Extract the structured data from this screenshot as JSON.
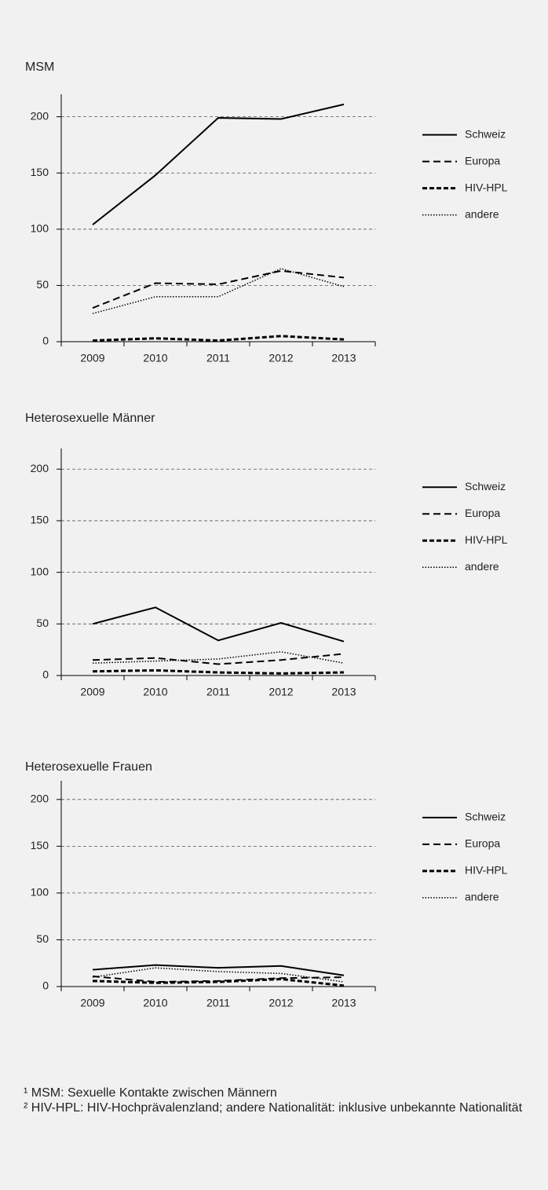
{
  "chart_data": [
    {
      "type": "line",
      "title": "MSM",
      "categories": [
        "2009",
        "2010",
        "2011",
        "2012",
        "2013"
      ],
      "series": [
        {
          "name": "Schweiz",
          "color": "#000000",
          "dash": "solid",
          "values": [
            104,
            148,
            199,
            198,
            211
          ]
        },
        {
          "name": "Europa",
          "color": "#000000",
          "dash": "longdash",
          "values": [
            30,
            52,
            51,
            63,
            57
          ]
        },
        {
          "name": "HIV-HPL",
          "color": "#000000",
          "dash": "dashed",
          "values": [
            1,
            3,
            1,
            5,
            2
          ]
        },
        {
          "name": "andere",
          "color": "#000000",
          "dash": "dotted",
          "values": [
            25,
            40,
            40,
            65,
            49
          ]
        }
      ],
      "ylim": [
        0,
        220
      ],
      "yticks": [
        0,
        50,
        100,
        150,
        200
      ],
      "grid": true,
      "legend": "right"
    },
    {
      "type": "line",
      "title": "Heterosexuelle Männer",
      "categories": [
        "2009",
        "2010",
        "2011",
        "2012",
        "2013"
      ],
      "series": [
        {
          "name": "Schweiz",
          "color": "#000000",
          "dash": "solid",
          "values": [
            50,
            66,
            34,
            51,
            33
          ]
        },
        {
          "name": "Europa",
          "color": "#000000",
          "dash": "longdash",
          "values": [
            15,
            17,
            11,
            15,
            21
          ]
        },
        {
          "name": "HIV-HPL",
          "color": "#000000",
          "dash": "dashed",
          "values": [
            4,
            5,
            3,
            2,
            3
          ]
        },
        {
          "name": "andere",
          "color": "#000000",
          "dash": "dotted",
          "values": [
            12,
            14,
            16,
            23,
            12
          ]
        }
      ],
      "ylim": [
        0,
        220
      ],
      "yticks": [
        0,
        50,
        100,
        150,
        200
      ],
      "grid": true,
      "legend": "right"
    },
    {
      "type": "line",
      "title": "Heterosexuelle Frauen",
      "categories": [
        "2009",
        "2010",
        "2011",
        "2012",
        "2013"
      ],
      "series": [
        {
          "name": "Schweiz",
          "color": "#000000",
          "dash": "solid",
          "values": [
            18,
            23,
            20,
            22,
            12
          ]
        },
        {
          "name": "Europa",
          "color": "#000000",
          "dash": "longdash",
          "values": [
            11,
            5,
            6,
            9,
            10
          ]
        },
        {
          "name": "HIV-HPL",
          "color": "#000000",
          "dash": "dashed",
          "values": [
            6,
            4,
            5,
            8,
            1
          ]
        },
        {
          "name": "andere",
          "color": "#000000",
          "dash": "dotted",
          "values": [
            10,
            20,
            16,
            14,
            5
          ]
        }
      ],
      "ylim": [
        0,
        220
      ],
      "yticks": [
        0,
        50,
        100,
        150,
        200
      ],
      "grid": true,
      "legend": "right"
    }
  ],
  "footnotes": [
    "¹ MSM: Sexuelle Kontakte zwischen Männern",
    "² HIV-HPL: HIV-Hochprävalenzland; andere Nationalität: inklusive unbekannte Nationalität"
  ]
}
